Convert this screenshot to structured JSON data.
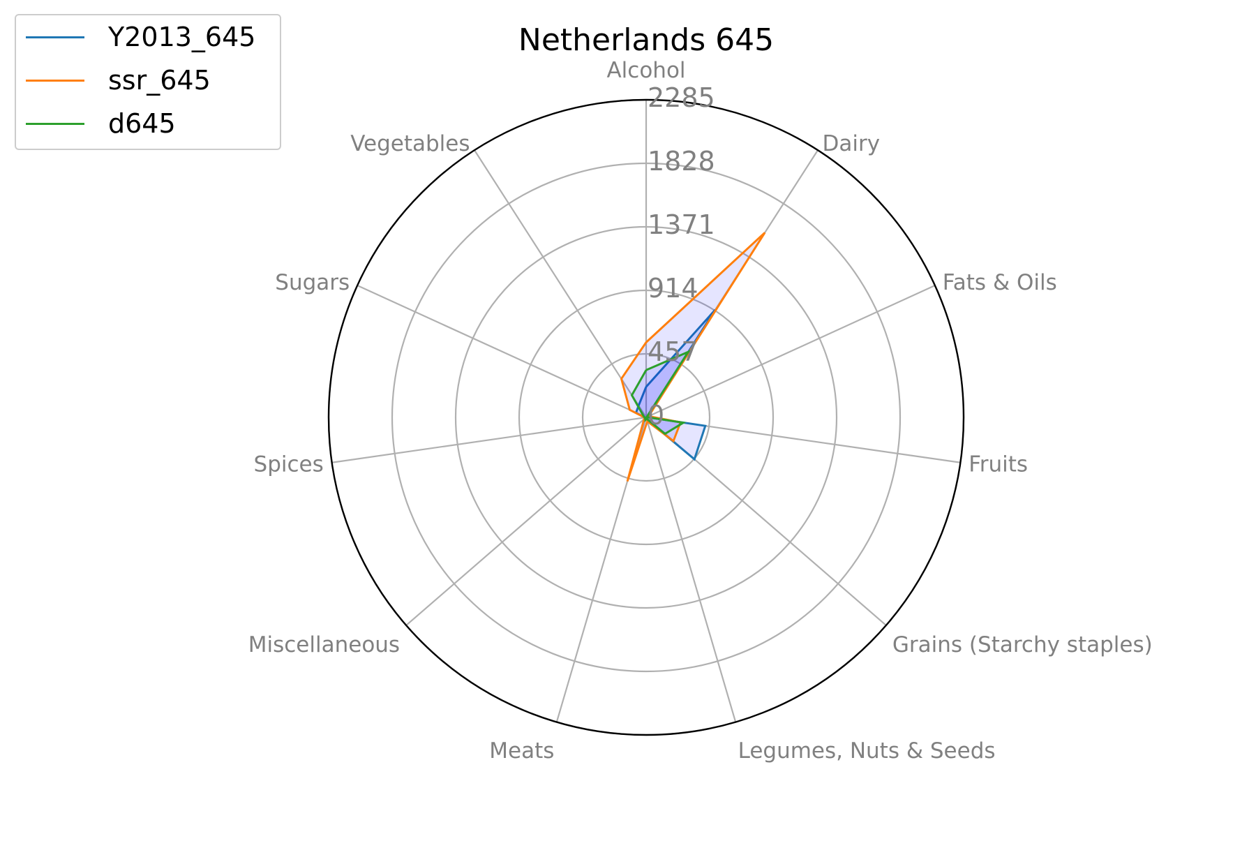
{
  "chart_data": {
    "type": "radar",
    "title": "Netherlands 645",
    "categories": [
      "Alcohol",
      "Dairy",
      "Fats & Oils",
      "Fruits",
      "Grains (Starchy staples)",
      "Legumes, Nuts & Seeds",
      "Meats",
      "Miscellaneous",
      "Spices",
      "Sugars",
      "Vegetables"
    ],
    "r_ticks": [
      0,
      457,
      914,
      1371,
      1828,
      2285
    ],
    "r_tick_labels": [
      "0",
      "457",
      "914",
      "1371",
      "1828",
      "2285"
    ],
    "rlim": [
      0,
      2285
    ],
    "grid": true,
    "legend_position": "top-left",
    "fill_color": "#0000ff",
    "fill_opacity": 0.1,
    "series": [
      {
        "name": "Y2013_645",
        "color": "#1f77b4",
        "values": [
          220,
          920,
          5,
          430,
          460,
          15,
          10,
          10,
          10,
          80,
          100
        ]
      },
      {
        "name": "ssr_645",
        "color": "#ff7f0e",
        "values": [
          540,
          1580,
          20,
          250,
          260,
          30,
          480,
          20,
          10,
          130,
          330
        ]
      },
      {
        "name": "d645",
        "color": "#2ca02c",
        "values": [
          340,
          560,
          5,
          270,
          180,
          10,
          20,
          10,
          10,
          20,
          190
        ]
      }
    ]
  }
}
